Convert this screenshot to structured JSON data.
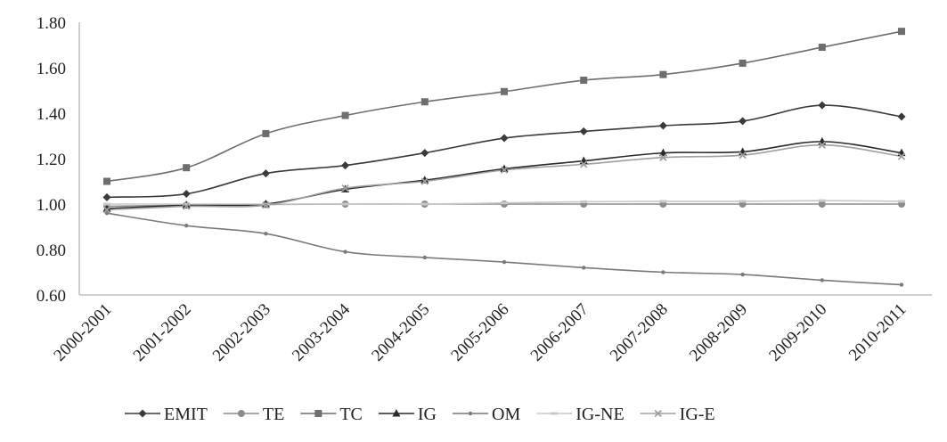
{
  "chart_data": {
    "type": "line",
    "title": "",
    "xlabel": "",
    "ylabel": "",
    "ylim": [
      0.6,
      1.8
    ],
    "yticks": [
      "0.60",
      "0.80",
      "1.00",
      "1.20",
      "1.40",
      "1.60",
      "1.80"
    ],
    "grid": false,
    "legend_position": "bottom",
    "categories": [
      "2000-2001",
      "2001-2002",
      "2002-2003",
      "2003-2004",
      "2004-2005",
      "2005-2006",
      "2006-2007",
      "2007-2008",
      "2008-2009",
      "2009-2010",
      "2010-2011"
    ],
    "series": [
      {
        "name": "EMIT",
        "marker": "diamond",
        "color": "#3a3a3a",
        "values": [
          1.03,
          1.045,
          1.135,
          1.17,
          1.225,
          1.29,
          1.32,
          1.345,
          1.365,
          1.435,
          1.385
        ]
      },
      {
        "name": "TE",
        "marker": "circle",
        "color": "#8c8c8c",
        "values": [
          0.99,
          0.995,
          0.998,
          1.0,
          1.0,
          1.0,
          1.0,
          1.0,
          1.0,
          1.0,
          1.0
        ]
      },
      {
        "name": "TC",
        "marker": "square",
        "color": "#6e6e6e",
        "values": [
          1.1,
          1.16,
          1.31,
          1.39,
          1.45,
          1.495,
          1.545,
          1.57,
          1.62,
          1.69,
          1.76
        ]
      },
      {
        "name": "IG",
        "marker": "triangle",
        "color": "#2a2a2a",
        "values": [
          0.98,
          0.995,
          1.0,
          1.065,
          1.105,
          1.155,
          1.19,
          1.225,
          1.23,
          1.275,
          1.225
        ]
      },
      {
        "name": "OM",
        "marker": "dot",
        "color": "#7a7a7a",
        "values": [
          0.96,
          0.905,
          0.87,
          0.79,
          0.765,
          0.745,
          0.72,
          0.7,
          0.69,
          0.665,
          0.645
        ]
      },
      {
        "name": "IG-NE",
        "marker": "dash",
        "color": "#c8c8c8",
        "values": [
          1.0,
          1.0,
          1.0,
          1.0,
          1.0,
          1.005,
          1.01,
          1.012,
          1.012,
          1.015,
          1.012
        ]
      },
      {
        "name": "IG-E",
        "marker": "x",
        "color": "#a0a0a0",
        "values": [
          0.975,
          0.99,
          0.995,
          1.07,
          1.1,
          1.15,
          1.175,
          1.205,
          1.215,
          1.26,
          1.21
        ]
      }
    ]
  }
}
